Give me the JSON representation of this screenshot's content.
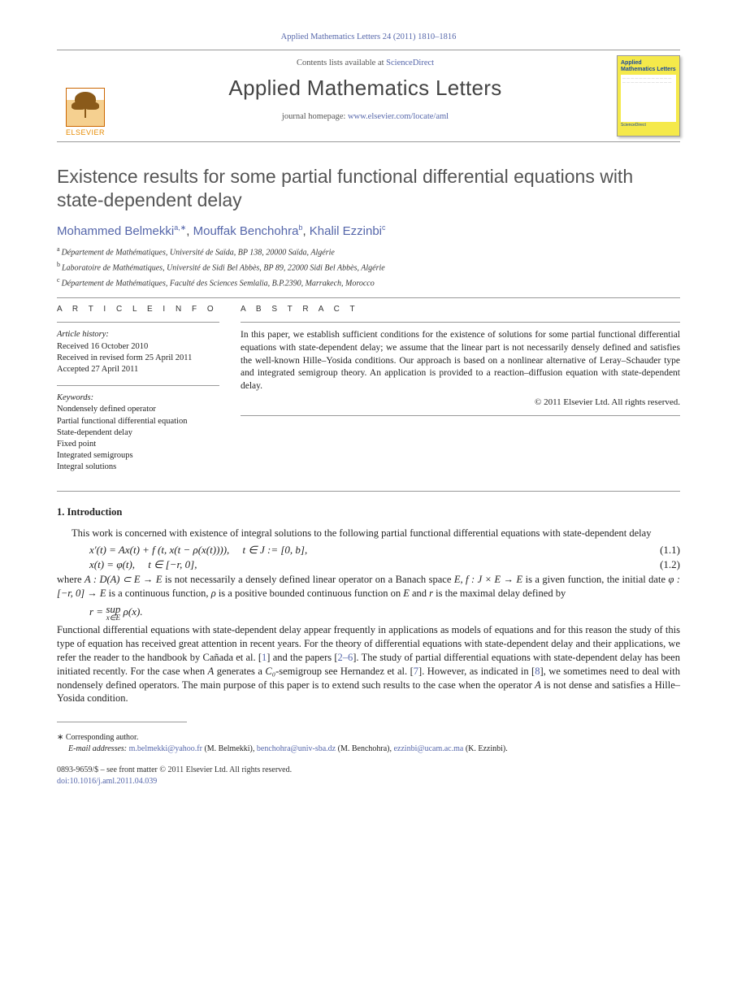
{
  "top_citation": "Applied Mathematics Letters 24 (2011) 1810–1816",
  "masthead": {
    "contents_prefix": "Contents lists available at ",
    "contents_link": "ScienceDirect",
    "journal": "Applied Mathematics Letters",
    "homepage_prefix": "journal homepage: ",
    "homepage_link": "www.elsevier.com/locate/aml",
    "publisher_logo_text": "ELSEVIER",
    "cover": {
      "title": "Applied Mathematics Letters",
      "footer": "ScienceDirect"
    }
  },
  "title": "Existence results for some partial functional differential equations with state-dependent delay",
  "authors": [
    {
      "name": "Mohammed Belmekki",
      "marks": "a,∗"
    },
    {
      "name": "Mouffak Benchohra",
      "marks": "b"
    },
    {
      "name": "Khalil Ezzinbi",
      "marks": "c"
    }
  ],
  "author_sep": ", ",
  "affiliations": [
    {
      "mark": "a",
      "text": "Département de Mathématiques, Université de Saïda, BP 138, 20000 Saïda, Algérie"
    },
    {
      "mark": "b",
      "text": "Laboratoire de Mathématiques, Université de Sidi Bel Abbès, BP 89, 22000 Sidi Bel Abbès, Algérie"
    },
    {
      "mark": "c",
      "text": "Département de Mathématiques, Faculté des Sciences Semlalia, B.P.2390, Marrakech, Morocco"
    }
  ],
  "info": {
    "heading": "A R T I C L E   I N F O",
    "history_label": "Article history:",
    "history": [
      "Received 16 October 2010",
      "Received in revised form 25 April 2011",
      "Accepted 27 April 2011"
    ],
    "keywords_label": "Keywords:",
    "keywords": [
      "Nondensely defined operator",
      "Partial functional differential equation",
      "State-dependent delay",
      "Fixed point",
      "Integrated semigroups",
      "Integral solutions"
    ]
  },
  "abstract": {
    "heading": "A B S T R A C T",
    "text": "In this paper, we establish sufficient conditions for the existence of solutions for some partial functional differential equations with state-dependent delay; we assume that the linear part is not necessarily densely defined and satisfies the well-known Hille–Yosida conditions. Our approach is based on a nonlinear alternative of Leray–Schauder type and integrated semigroup theory. An application is provided to a reaction–diffusion equation with state-dependent delay.",
    "copyright": "© 2011 Elsevier Ltd. All rights reserved."
  },
  "section1": {
    "heading": "1.  Introduction",
    "p1": "This work is concerned with existence of integral solutions to the following partial functional differential equations with state-dependent delay",
    "eq1": "x′(t) = Ax(t) + f (t, x(t − ρ(x(t)))),  t ∈ J := [0, b],",
    "eq1num": "(1.1)",
    "eq2": "x(t) = φ(t),  t ∈ [−r, 0],",
    "eq2num": "(1.2)",
    "p2a": "where ",
    "p2b": "A : D(A) ⊂ E → E",
    "p2c": " is not necessarily a densely defined linear operator on a Banach space ",
    "p2d": "E, f : J × E → E",
    "p2e": " is a given function, the initial date ",
    "p2f": "φ : [−r, 0] → E",
    "p2g": " is a continuous function, ",
    "p2h": "ρ",
    "p2i": " is a positive bounded continuous function on ",
    "p2j": "E",
    "p2k": " and ",
    "p2l": "r",
    "p2m": " is the maximal delay defined by",
    "eq3a": "r = ",
    "eq3b_top": "sup",
    "eq3b_bot": "x∈E",
    "eq3c": " ρ(x).",
    "p3a": "Functional differential equations with state-dependent delay appear frequently in applications as models of equations and for this reason the study of this type of equation has received great attention in recent years. For the theory of differential equations with state-dependent delay and their applications, we refer the reader to the handbook by Cañada et al. [",
    "ref1": "1",
    "p3b": "] and the papers [",
    "ref26": "2–6",
    "p3c": "]. The study of partial differential equations with state-dependent delay has been initiated recently. For the case when ",
    "p3d": "A",
    "p3e": " generates a ",
    "p3f": "C₀",
    "p3g": "-semigroup see Hernandez et al. [",
    "ref7": "7",
    "p3h": "]. However, as indicated in [",
    "ref8": "8",
    "p3i": "], we sometimes need to deal with nondensely defined operators. The main purpose of this paper is to extend such results to the case when the operator ",
    "p3j": "A",
    "p3k": " is not dense and satisfies a Hille–Yosida condition."
  },
  "footnotes": {
    "corr": "∗  Corresponding author.",
    "emails_label": "E-mail addresses: ",
    "emails": [
      {
        "addr": "m.belmekki@yahoo.fr",
        "who": " (M. Belmekki), "
      },
      {
        "addr": "benchohra@univ-sba.dz",
        "who": " (M. Benchohra), "
      },
      {
        "addr": "ezzinbi@ucam.ac.ma",
        "who": " (K. Ezzinbi)."
      }
    ]
  },
  "footer": {
    "line1": "0893-9659/$ – see front matter © 2011 Elsevier Ltd. All rights reserved.",
    "doi_label": "doi:",
    "doi": "10.1016/j.aml.2011.04.039"
  },
  "colors": {
    "link": "#5566aa",
    "text": "#222222",
    "heading_grey": "#555555",
    "cover_bg": "#f5e94a",
    "logo_orange": "#e68a00"
  }
}
